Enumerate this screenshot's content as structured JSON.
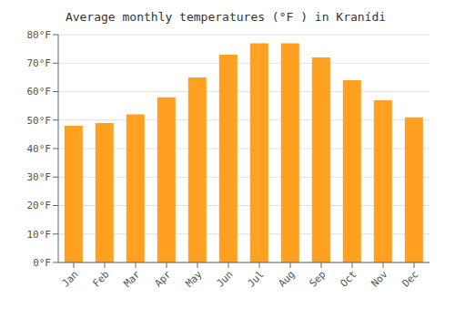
{
  "chart_data": {
    "type": "bar",
    "title": "Average monthly temperatures (°F ) in Kranídi",
    "categories": [
      "Jan",
      "Feb",
      "Mar",
      "Apr",
      "May",
      "Jun",
      "Jul",
      "Aug",
      "Sep",
      "Oct",
      "Nov",
      "Dec"
    ],
    "values": [
      48,
      49,
      52,
      58,
      65,
      73,
      77,
      77,
      72,
      64,
      57,
      51
    ],
    "color": "#FFA020",
    "ylim": [
      0,
      80
    ],
    "yticks": [
      {
        "value": 0,
        "label": "0°F"
      },
      {
        "value": 10,
        "label": "10°F"
      },
      {
        "value": 20,
        "label": "20°F"
      },
      {
        "value": 30,
        "label": "30°F"
      },
      {
        "value": 40,
        "label": "40°F"
      },
      {
        "value": 50,
        "label": "50°F"
      },
      {
        "value": 60,
        "label": "60°F"
      },
      {
        "value": 70,
        "label": "70°F"
      },
      {
        "value": 80,
        "label": "80°F"
      }
    ],
    "grid": true
  }
}
